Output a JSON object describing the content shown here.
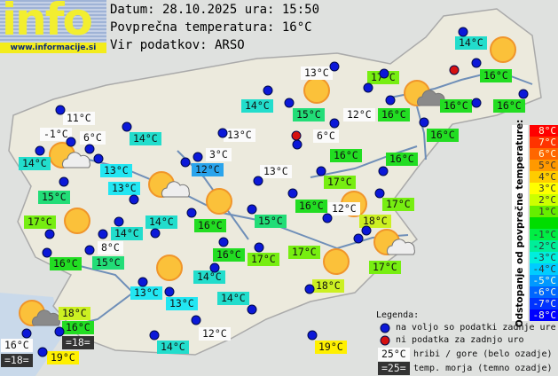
{
  "logo": {
    "text": "info",
    "url": "www.informacije.si"
  },
  "header": {
    "date_line": "Datum: 28.10.2025 ura: 15:50",
    "avg_line": "Povprečna temperatura: 16°C",
    "source_line": "Vir podatkov: ARSO"
  },
  "stations": [
    {
      "t": "14°C",
      "c": "14"
    },
    {
      "t": "17°C",
      "c": "17"
    },
    {
      "t": "16°C",
      "c": "16"
    },
    {
      "t": "13°C",
      "c": "w"
    },
    {
      "t": "14°C",
      "c": "14"
    },
    {
      "t": "15°C",
      "c": "15"
    },
    {
      "t": "12°C",
      "c": "w"
    },
    {
      "t": "16°C",
      "c": "16"
    },
    {
      "t": "16°C",
      "c": "16"
    },
    {
      "t": "16°C",
      "c": "16"
    },
    {
      "t": "11°C",
      "c": "w"
    },
    {
      "t": "-1°C",
      "c": "w"
    },
    {
      "t": "6°C",
      "c": "w"
    },
    {
      "t": "14°C",
      "c": "14"
    },
    {
      "t": "13°C",
      "c": "w"
    },
    {
      "t": "6°C",
      "c": "w"
    },
    {
      "t": "16°C",
      "c": "16"
    },
    {
      "t": "14°C",
      "c": "14"
    },
    {
      "t": "13°C",
      "c": "13"
    },
    {
      "t": "3°C",
      "c": "w"
    },
    {
      "t": "12°C",
      "c": "12"
    },
    {
      "t": "13°C",
      "c": "w"
    },
    {
      "t": "16°C",
      "c": "16"
    },
    {
      "t": "16°C",
      "c": "16"
    },
    {
      "t": "13°C",
      "c": "13"
    },
    {
      "t": "17°C",
      "c": "17"
    },
    {
      "t": "15°C",
      "c": "15"
    },
    {
      "t": "12°C",
      "c": "w"
    },
    {
      "t": "17°C",
      "c": "17"
    },
    {
      "t": "17°C",
      "c": "17"
    },
    {
      "t": "14°C",
      "c": "14"
    },
    {
      "t": "16°C",
      "c": "16"
    },
    {
      "t": "16°C",
      "c": "16"
    },
    {
      "t": "15°C",
      "c": "15"
    },
    {
      "t": "18°C",
      "c": "18"
    },
    {
      "t": "14°C",
      "c": "14"
    },
    {
      "t": "8°C",
      "c": "w"
    },
    {
      "t": "16°C",
      "c": "16"
    },
    {
      "t": "15°C",
      "c": "15"
    },
    {
      "t": "16°C",
      "c": "16"
    },
    {
      "t": "17°C",
      "c": "17"
    },
    {
      "t": "17°C",
      "c": "17"
    },
    {
      "t": "17°C",
      "c": "17"
    },
    {
      "t": "14°C",
      "c": "14"
    },
    {
      "t": "18°C",
      "c": "18"
    },
    {
      "t": "13°C",
      "c": "13"
    },
    {
      "t": "13°C",
      "c": "13"
    },
    {
      "t": "14°C",
      "c": "14"
    },
    {
      "t": "18°C",
      "c": "18"
    },
    {
      "t": "16°C",
      "c": "16"
    },
    {
      "t": "=18=",
      "c": "d"
    },
    {
      "t": "16°C",
      "c": "w"
    },
    {
      "t": "=18=",
      "c": "d"
    },
    {
      "t": "19°C",
      "c": "19"
    },
    {
      "t": "14°C",
      "c": "14"
    },
    {
      "t": "12°C",
      "c": "w"
    },
    {
      "t": "19°C",
      "c": "19"
    }
  ],
  "temp_colors": {
    "12": "#2aa4ec",
    "13": "#22e6f2",
    "14": "#22ddcc",
    "15": "#22dd77",
    "16": "#22dd22",
    "17": "#77ee11",
    "18": "#ccf022",
    "19": "#fff000"
  },
  "scale": {
    "title": "Odstopanje od povprečne temperature:",
    "items": [
      {
        "t": "8°C",
        "bg": "#ff0000"
      },
      {
        "t": "7°C",
        "bg": "#ff3300"
      },
      {
        "t": "6°C",
        "bg": "#ff6600"
      },
      {
        "t": "5°C",
        "bg": "#ff9900"
      },
      {
        "t": "4°C",
        "bg": "#ffcc00"
      },
      {
        "t": "3°C",
        "bg": "#ffff00"
      },
      {
        "t": "2°C",
        "bg": "#ccff00"
      },
      {
        "t": "1°C",
        "bg": "#66ee00"
      },
      {
        "t": "",
        "bg": "#00dd00"
      },
      {
        "t": "-1°C",
        "bg": "#00ee44"
      },
      {
        "t": "-2°C",
        "bg": "#00ee99"
      },
      {
        "t": "-3°C",
        "bg": "#00eedd"
      },
      {
        "t": "-4°C",
        "bg": "#00ccff"
      },
      {
        "t": "-5°C",
        "bg": "#0099ff"
      },
      {
        "t": "-6°C",
        "bg": "#0066ff"
      },
      {
        "t": "-7°C",
        "bg": "#0033ff"
      },
      {
        "t": "-8°C",
        "bg": "#0000ff"
      }
    ]
  },
  "legend": {
    "title": "Legenda:",
    "blue": "na voljo so podatki zadnje ure",
    "red": "ni podatka za zadnjo uro",
    "hill_sample": "25°C",
    "hill": "hribi / gore (belo ozadje)",
    "sea_sample": "=25=",
    "sea": "temp. morja (temno ozadje)"
  },
  "weather_icons": [
    "sun-cloud",
    "sun-cloud",
    "sun",
    "sun",
    "sun",
    "sun",
    "sun",
    "sun",
    "sun-cloud",
    "sun-dark-cloud",
    "sun",
    "sun-dark-cloud"
  ]
}
